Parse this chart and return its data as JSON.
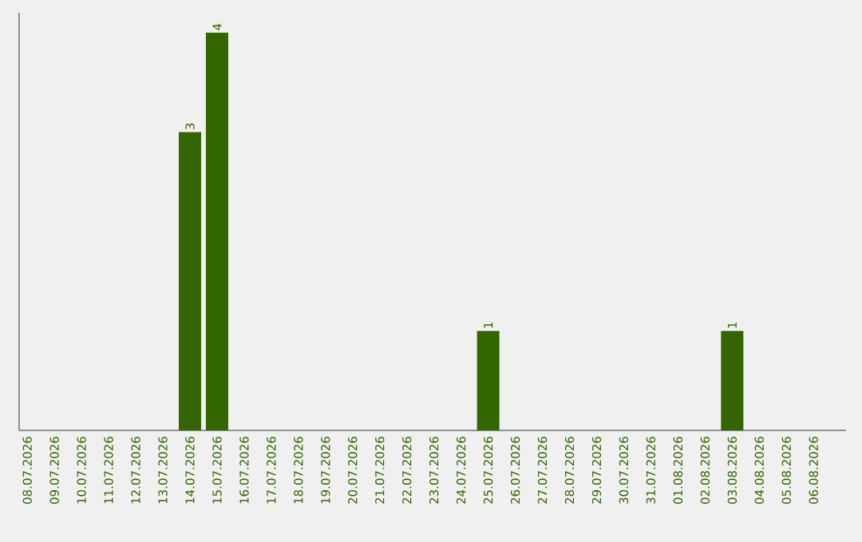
{
  "chart_data": {
    "type": "bar",
    "categories": [
      "08.07.2026",
      "09.07.2026",
      "10.07.2026",
      "11.07.2026",
      "12.07.2026",
      "13.07.2026",
      "14.07.2026",
      "15.07.2026",
      "16.07.2026",
      "17.07.2026",
      "18.07.2026",
      "19.07.2026",
      "20.07.2026",
      "21.07.2026",
      "22.07.2026",
      "23.07.2026",
      "24.07.2026",
      "25.07.2026",
      "26.07.2026",
      "27.07.2026",
      "28.07.2026",
      "29.07.2026",
      "30.07.2026",
      "31.07.2026",
      "01.08.2026",
      "02.08.2026",
      "03.08.2026",
      "04.08.2026",
      "05.08.2026",
      "06.08.2026"
    ],
    "values": [
      0,
      0,
      0,
      0,
      0,
      0,
      3,
      4,
      0,
      0,
      0,
      0,
      0,
      0,
      0,
      0,
      0,
      1,
      0,
      0,
      0,
      0,
      0,
      0,
      0,
      0,
      1,
      0,
      0,
      0
    ],
    "value_labels": [
      null,
      null,
      null,
      null,
      null,
      null,
      "3",
      "4",
      null,
      null,
      null,
      null,
      null,
      null,
      null,
      null,
      null,
      "1",
      null,
      null,
      null,
      null,
      null,
      null,
      null,
      null,
      "1",
      null,
      null,
      null
    ],
    "color": "#336600",
    "ylim": [
      0,
      4.2
    ],
    "grid": false,
    "tick_labels": "x"
  }
}
